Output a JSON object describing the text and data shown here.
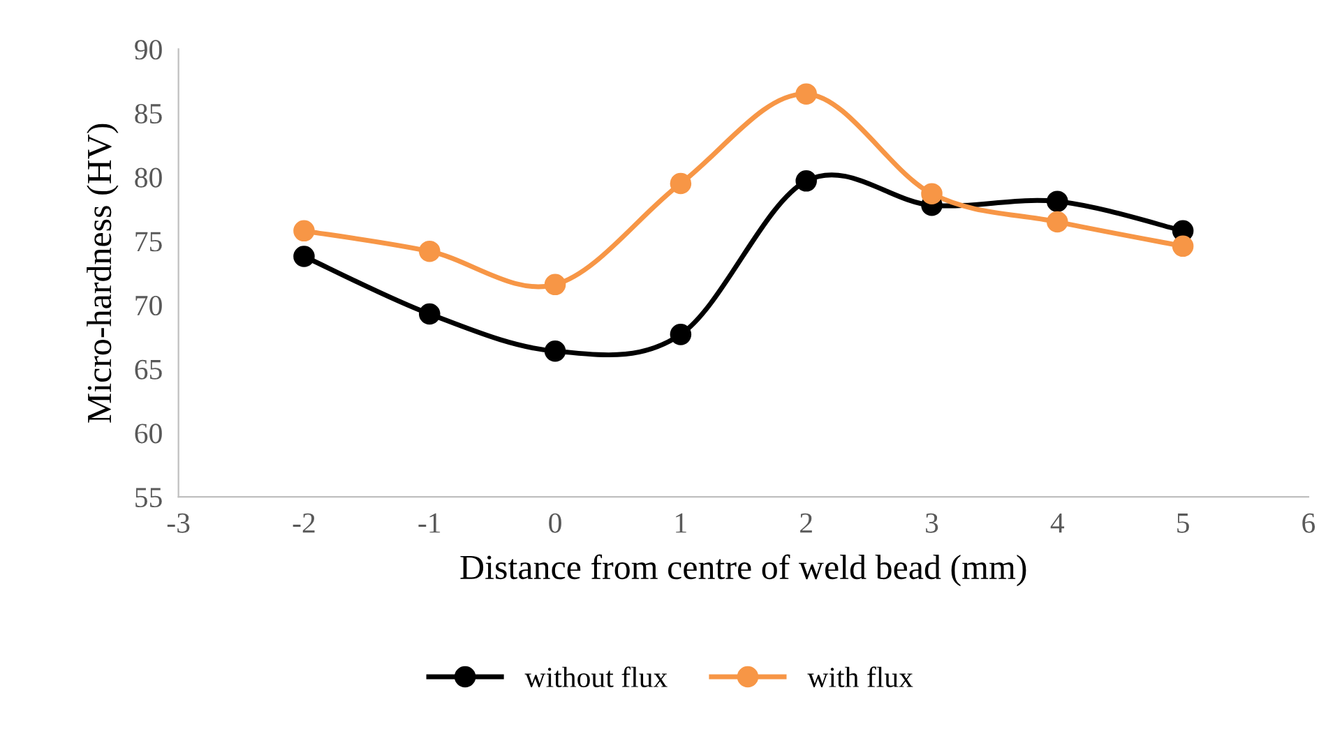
{
  "chart_data": {
    "type": "line",
    "xlabel": "Distance from centre of weld bead (mm)",
    "ylabel": "Micro-hardness (HV)",
    "x": [
      -2,
      -1,
      0,
      1,
      2,
      3,
      4,
      5
    ],
    "series": [
      {
        "name": "without flux",
        "color": "#000000",
        "values": [
          73.8,
          69.3,
          66.4,
          67.7,
          79.7,
          77.8,
          78.1,
          75.8
        ]
      },
      {
        "name": "with flux",
        "color": "#f79646",
        "values": [
          75.8,
          74.2,
          71.6,
          79.5,
          86.5,
          78.7,
          76.5,
          74.6
        ]
      }
    ],
    "xlim": [
      -3,
      6
    ],
    "xticks": [
      -3,
      -2,
      -1,
      0,
      1,
      2,
      3,
      4,
      5,
      6
    ],
    "ylim": [
      55,
      90
    ],
    "yticks": [
      55,
      60,
      65,
      70,
      75,
      80,
      85,
      90
    ],
    "grid": false,
    "legend": "bottom",
    "marker": "circle",
    "line_style": "solid"
  }
}
